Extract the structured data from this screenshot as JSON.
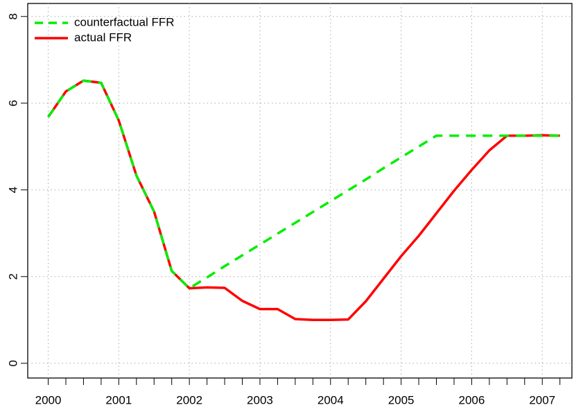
{
  "chart_data": {
    "type": "line",
    "x": [
      2000,
      2000.25,
      2000.5,
      2000.75,
      2001,
      2001.25,
      2001.5,
      2001.75,
      2002,
      2002.25,
      2002.5,
      2002.75,
      2003,
      2003.25,
      2003.5,
      2003.75,
      2004,
      2004.25,
      2004.5,
      2004.75,
      2005,
      2005.25,
      2005.5,
      2005.75,
      2006,
      2006.25,
      2006.5,
      2006.75,
      2007,
      2007.25
    ],
    "series": [
      {
        "name": "actual FFR",
        "color": "#ff0000",
        "dashed": false,
        "values": [
          5.68,
          6.27,
          6.52,
          6.47,
          5.6,
          4.33,
          3.5,
          2.13,
          1.73,
          1.75,
          1.74,
          1.44,
          1.25,
          1.25,
          1.02,
          1.0,
          1.0,
          1.01,
          1.43,
          1.95,
          2.47,
          2.94,
          3.46,
          3.98,
          4.46,
          4.91,
          5.25,
          5.25,
          5.26,
          5.25
        ]
      },
      {
        "name": "counterfactual FFR",
        "color": "#00ee00",
        "dashed": true,
        "values": [
          5.68,
          6.27,
          6.52,
          6.47,
          5.6,
          4.33,
          3.5,
          2.13,
          1.73,
          1.98,
          2.24,
          2.49,
          2.74,
          2.99,
          3.24,
          3.49,
          3.74,
          3.99,
          4.24,
          4.5,
          4.75,
          5.0,
          5.25,
          5.25,
          5.25,
          5.25,
          5.25,
          5.25,
          5.25,
          5.25
        ]
      }
    ],
    "legend_order": [
      "counterfactual FFR",
      "actual FFR"
    ],
    "xlim": [
      1999.71,
      2007.42
    ],
    "ylim": [
      -0.34,
      8.3
    ],
    "xticks": [
      2000,
      2001,
      2002,
      2003,
      2004,
      2005,
      2006,
      2007
    ],
    "xminorticks": [
      2000.25,
      2000.5,
      2000.75,
      2001.25,
      2001.5,
      2001.75,
      2002.25,
      2002.5,
      2002.75,
      2003.25,
      2003.5,
      2003.75,
      2004.25,
      2004.5,
      2004.75,
      2005.25,
      2005.5,
      2005.75,
      2006.25,
      2006.5,
      2006.75,
      2007.25
    ],
    "yticks": [
      0,
      2,
      4,
      6,
      8
    ],
    "grid": true,
    "legend": "top-left"
  }
}
